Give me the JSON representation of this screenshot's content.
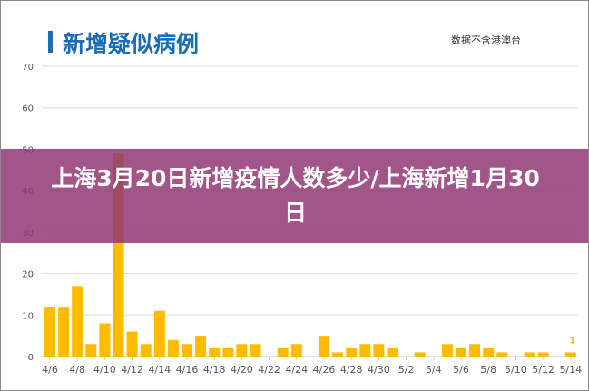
{
  "chart_data": {
    "type": "bar",
    "title": "新增疑似病例",
    "note": "数据不含港澳台",
    "categories": [
      "4/6",
      "4/7",
      "4/8",
      "4/9",
      "4/10",
      "4/11",
      "4/12",
      "4/13",
      "4/14",
      "4/15",
      "4/16",
      "4/17",
      "4/18",
      "4/19",
      "4/20",
      "4/21",
      "4/22",
      "4/23",
      "4/24",
      "4/25",
      "4/26",
      "4/27",
      "4/28",
      "4/29",
      "4/30",
      "5/1",
      "5/2",
      "5/3",
      "5/4",
      "5/5",
      "5/6",
      "5/7",
      "5/8",
      "5/9",
      "5/10",
      "5/11",
      "5/12",
      "5/13",
      "5/14"
    ],
    "values": [
      12,
      12,
      17,
      3,
      8,
      49,
      6,
      3,
      11,
      4,
      3,
      5,
      2,
      2,
      3,
      3,
      0,
      2,
      3,
      0,
      5,
      1,
      2,
      3,
      3,
      2,
      0,
      1,
      0,
      3,
      2,
      3,
      2,
      1,
      0,
      1,
      1,
      0,
      1
    ],
    "x_tick_labels": [
      "4/6",
      "4/8",
      "4/10",
      "4/12",
      "4/14",
      "4/16",
      "4/18",
      "4/20",
      "4/22",
      "4/24",
      "4/26",
      "4/28",
      "4/30",
      "5/2",
      "5/4",
      "5/6",
      "5/8",
      "5/10",
      "5/12",
      "5/14"
    ],
    "y_ticks": [
      0,
      10,
      20,
      30,
      40,
      50,
      60,
      70
    ],
    "ylim": [
      0,
      70
    ],
    "grid": true,
    "data_label": {
      "category": "5/14",
      "text": "1"
    },
    "colors": {
      "bar": "#ffbb00",
      "title": "#1a6db3",
      "overlay": "#91376f"
    }
  },
  "overlay": {
    "headline": "上海3月20日新增疫情人数多少/上海新增1月30日"
  }
}
